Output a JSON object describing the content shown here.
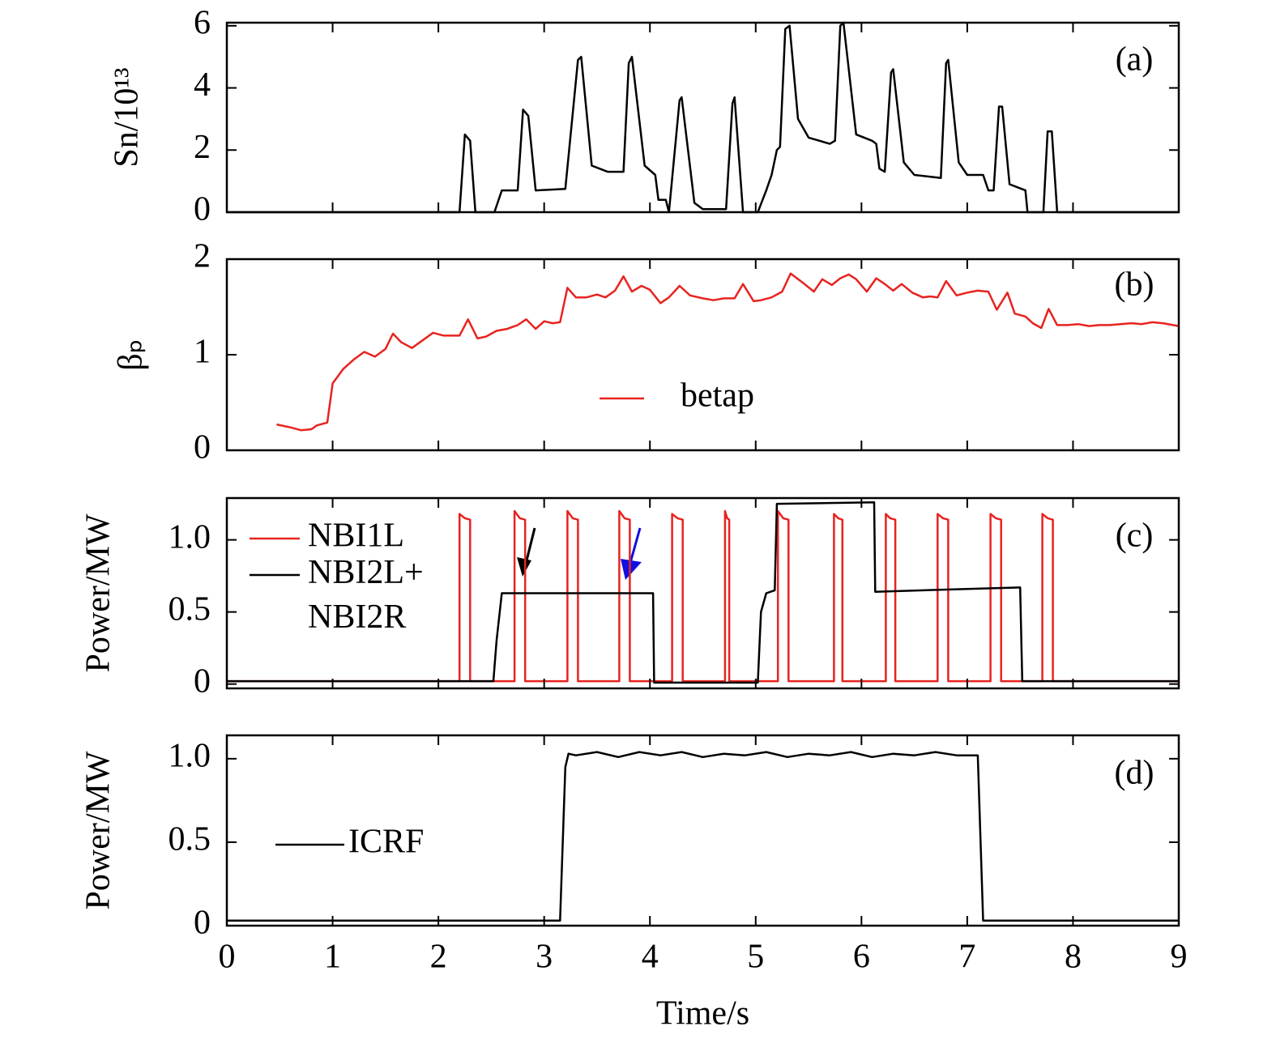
{
  "chart_data": [
    {
      "type": "line",
      "panel_label": "(a)",
      "ylabel": "Sn/10¹³",
      "ylim": [
        0,
        6.1
      ],
      "yticks": [
        0,
        2,
        4,
        6
      ],
      "xlim": [
        0,
        9
      ],
      "xticks": [
        0,
        1,
        2,
        3,
        4,
        5,
        6,
        7,
        8,
        9
      ],
      "series": [
        {
          "color": "#000000",
          "x": [
            0,
            2.2,
            2.25,
            2.3,
            2.35,
            2.53,
            2.6,
            2.75,
            2.8,
            2.85,
            2.92,
            3.2,
            3.32,
            3.35,
            3.45,
            3.6,
            3.75,
            3.8,
            3.83,
            3.95,
            4.05,
            4.08,
            4.15,
            4.18,
            4.28,
            4.3,
            4.42,
            4.5,
            4.72,
            4.78,
            4.8,
            4.88,
            5.02,
            5.1,
            5.15,
            5.2,
            5.23,
            5.28,
            5.32,
            5.4,
            5.5,
            5.7,
            5.75,
            5.8,
            5.83,
            5.95,
            6.1,
            6.14,
            6.17,
            6.22,
            6.28,
            6.3,
            6.4,
            6.5,
            6.75,
            6.8,
            6.82,
            6.92,
            7.0,
            7.15,
            7.2,
            7.25,
            7.3,
            7.33,
            7.4,
            7.55,
            7.57,
            7.72,
            7.76,
            7.8,
            7.85,
            9
          ],
          "values": [
            0,
            0,
            2.5,
            2.3,
            0,
            0,
            0.7,
            0.7,
            3.3,
            3.1,
            0.7,
            0.75,
            4.9,
            5.0,
            1.5,
            1.3,
            1.3,
            4.8,
            5.0,
            1.5,
            1.2,
            0.4,
            0.4,
            0,
            3.6,
            3.7,
            0.3,
            0.1,
            0.1,
            3.5,
            3.7,
            0,
            0,
            0.7,
            1.2,
            2.0,
            2.1,
            5.9,
            6.0,
            3.0,
            2.4,
            2.2,
            2.3,
            6.0,
            6.1,
            2.5,
            2.3,
            2.2,
            1.4,
            1.3,
            4.5,
            4.6,
            1.6,
            1.2,
            1.1,
            4.8,
            4.9,
            1.6,
            1.2,
            1.2,
            0.7,
            0.7,
            3.4,
            3.4,
            0.9,
            0.7,
            0,
            0,
            2.6,
            2.6,
            0,
            0
          ]
        }
      ]
    },
    {
      "type": "line",
      "panel_label": "(b)",
      "ylabel": "βₚ",
      "ylim": [
        0,
        2
      ],
      "yticks": [
        0,
        1,
        2
      ],
      "xlim": [
        0,
        9
      ],
      "xticks": [
        0,
        1,
        2,
        3,
        4,
        5,
        6,
        7,
        8,
        9
      ],
      "series": [
        {
          "name": "betap",
          "color": "#e8231f",
          "x": [
            0.47,
            0.6,
            0.7,
            0.8,
            0.85,
            0.95,
            1.0,
            1.1,
            1.2,
            1.3,
            1.4,
            1.5,
            1.57,
            1.65,
            1.75,
            1.85,
            1.95,
            2.05,
            2.2,
            2.28,
            2.37,
            2.45,
            2.55,
            2.65,
            2.75,
            2.83,
            2.92,
            3.0,
            3.08,
            3.15,
            3.22,
            3.3,
            3.4,
            3.5,
            3.58,
            3.67,
            3.75,
            3.83,
            3.92,
            4.0,
            4.1,
            4.18,
            4.28,
            4.38,
            4.5,
            4.6,
            4.7,
            4.8,
            4.88,
            4.98,
            5.05,
            5.15,
            5.25,
            5.33,
            5.45,
            5.55,
            5.63,
            5.72,
            5.8,
            5.88,
            5.95,
            6.05,
            6.14,
            6.22,
            6.3,
            6.38,
            6.48,
            6.58,
            6.65,
            6.72,
            6.8,
            6.9,
            7.0,
            7.1,
            7.2,
            7.28,
            7.38,
            7.45,
            7.55,
            7.62,
            7.7,
            7.77,
            7.85,
            7.95,
            8.05,
            8.15,
            8.25,
            8.35,
            8.45,
            8.55,
            8.65,
            8.75,
            8.85,
            9.0
          ],
          "values": [
            0.27,
            0.24,
            0.21,
            0.22,
            0.26,
            0.29,
            0.7,
            0.85,
            0.95,
            1.03,
            0.98,
            1.06,
            1.22,
            1.13,
            1.07,
            1.15,
            1.23,
            1.2,
            1.2,
            1.37,
            1.17,
            1.19,
            1.25,
            1.27,
            1.31,
            1.37,
            1.27,
            1.35,
            1.33,
            1.34,
            1.7,
            1.6,
            1.6,
            1.63,
            1.6,
            1.67,
            1.82,
            1.66,
            1.72,
            1.68,
            1.54,
            1.6,
            1.72,
            1.62,
            1.59,
            1.57,
            1.59,
            1.59,
            1.74,
            1.56,
            1.57,
            1.6,
            1.66,
            1.85,
            1.75,
            1.66,
            1.79,
            1.73,
            1.8,
            1.84,
            1.79,
            1.66,
            1.8,
            1.74,
            1.67,
            1.74,
            1.65,
            1.6,
            1.61,
            1.6,
            1.77,
            1.62,
            1.65,
            1.67,
            1.66,
            1.47,
            1.65,
            1.43,
            1.4,
            1.33,
            1.28,
            1.48,
            1.31,
            1.31,
            1.32,
            1.3,
            1.31,
            1.31,
            1.32,
            1.33,
            1.32,
            1.34,
            1.33,
            1.3
          ]
        }
      ]
    },
    {
      "type": "line",
      "panel_label": "(c)",
      "ylabel": "Power/MW",
      "ylim": [
        -0.03,
        1.29
      ],
      "yticks": [
        0,
        0.5,
        {
          "value": 1,
          "label": "1.0"
        }
      ],
      "xlim": [
        0,
        9
      ],
      "xticks": [
        0,
        1,
        2,
        3,
        4,
        5,
        6,
        7,
        8,
        9
      ],
      "series": [
        {
          "name": "NBI1L",
          "color": "#e8231f",
          "x": [
            0,
            2.2,
            2.2,
            2.25,
            2.3,
            2.3,
            2.72,
            2.72,
            2.77,
            2.82,
            2.82,
            3.22,
            3.22,
            3.27,
            3.32,
            3.32,
            3.71,
            3.71,
            3.76,
            3.81,
            3.81,
            4.21,
            4.21,
            4.26,
            4.31,
            4.31,
            4.71,
            4.71,
            4.73,
            4.75,
            4.75,
            5.21,
            5.21,
            5.26,
            5.31,
            5.31,
            5.74,
            5.74,
            5.78,
            5.82,
            5.82,
            6.23,
            6.23,
            6.27,
            6.32,
            6.32,
            6.72,
            6.72,
            6.77,
            6.82,
            6.82,
            7.22,
            7.22,
            7.27,
            7.32,
            7.32,
            7.71,
            7.71,
            7.76,
            7.81,
            7.81,
            9
          ],
          "values": [
            0.02,
            0.02,
            1.18,
            1.15,
            1.14,
            0.02,
            0.02,
            1.2,
            1.15,
            1.14,
            0.02,
            0.02,
            1.2,
            1.15,
            1.14,
            0.02,
            0.02,
            1.2,
            1.15,
            1.14,
            0.02,
            0.02,
            1.18,
            1.15,
            1.14,
            0.02,
            0.02,
            1.2,
            1.15,
            1.14,
            0.02,
            0.02,
            1.2,
            1.15,
            1.14,
            0.02,
            0.02,
            1.18,
            1.15,
            1.14,
            0.02,
            0.02,
            1.18,
            1.15,
            1.14,
            0.02,
            0.02,
            1.18,
            1.15,
            1.14,
            0.02,
            0.02,
            1.18,
            1.15,
            1.14,
            0.02,
            0.02,
            1.18,
            1.15,
            1.14,
            0.02,
            0.02
          ]
        },
        {
          "name": "NBI2L+ NBI2R",
          "color": "#000000",
          "x": [
            0,
            2.52,
            2.55,
            2.6,
            4.03,
            4.04,
            5.02,
            5.05,
            5.1,
            5.18,
            5.2,
            6.12,
            6.13,
            7.0,
            7.5,
            7.52,
            9
          ],
          "values": [
            0.02,
            0.02,
            0.3,
            0.63,
            0.63,
            0.01,
            0.01,
            0.5,
            0.63,
            0.65,
            1.25,
            1.26,
            0.64,
            0.66,
            0.67,
            0.02,
            0.02
          ]
        }
      ]
    },
    {
      "type": "line",
      "panel_label": "(d)",
      "ylabel": "Power/MW",
      "xlabel": "Time/s",
      "ylim": [
        0,
        1.14
      ],
      "yticks": [
        0,
        0.5,
        {
          "value": 1,
          "label": "1.0"
        }
      ],
      "xlim": [
        0,
        9
      ],
      "xticks": [
        0,
        1,
        2,
        3,
        4,
        5,
        6,
        7,
        8,
        9
      ],
      "series": [
        {
          "name": "ICRF",
          "color": "#000000",
          "x": [
            0,
            3.15,
            3.2,
            3.23,
            3.3,
            3.5,
            3.7,
            3.9,
            4.1,
            4.3,
            4.5,
            4.7,
            4.9,
            5.1,
            5.3,
            5.5,
            5.7,
            5.9,
            6.1,
            6.3,
            6.5,
            6.7,
            6.9,
            7.1,
            7.15,
            9
          ],
          "values": [
            0.03,
            0.03,
            0.95,
            1.03,
            1.02,
            1.04,
            1.01,
            1.04,
            1.02,
            1.04,
            1.01,
            1.03,
            1.02,
            1.04,
            1.01,
            1.03,
            1.02,
            1.04,
            1.01,
            1.03,
            1.02,
            1.04,
            1.02,
            1.02,
            0.03,
            0.03
          ]
        }
      ]
    }
  ]
}
